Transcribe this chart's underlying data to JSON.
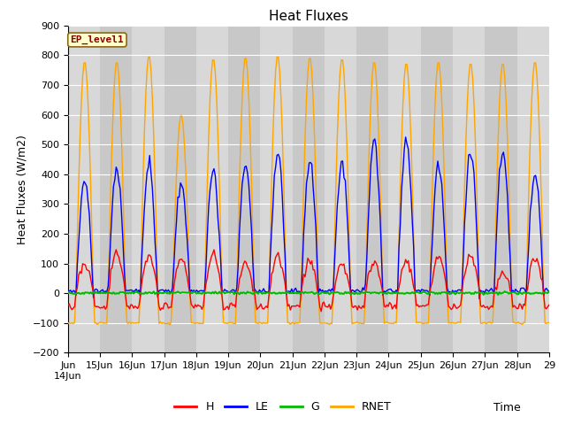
{
  "title": "Heat Fluxes",
  "ylabel": "Heat Fluxes (W/m2)",
  "xlabel": "Time",
  "ylim": [
    -200,
    900
  ],
  "yticks": [
    -200,
    -100,
    0,
    100,
    200,
    300,
    400,
    500,
    600,
    700,
    800,
    900
  ],
  "colors": {
    "H": "#ff0000",
    "LE": "#0000ff",
    "G": "#00bb00",
    "RNET": "#ffa500"
  },
  "legend_label": "EP_level1",
  "bg_color": "#d8d8d8",
  "alt_bg_color": "#c8c8c8",
  "grid_color": "#ffffff",
  "title_fontsize": 11,
  "label_fontsize": 9,
  "tick_fontsize": 8,
  "n_days": 15,
  "rnet_peaks": [
    780,
    780,
    800,
    600,
    790,
    795,
    800,
    795,
    790,
    780,
    775,
    780,
    775,
    775,
    780
  ],
  "le_peaks": [
    380,
    420,
    420,
    370,
    410,
    440,
    475,
    440,
    435,
    515,
    510,
    425,
    470,
    475,
    395
  ],
  "h_peaks": [
    100,
    130,
    125,
    120,
    130,
    105,
    130,
    105,
    100,
    105,
    100,
    125,
    125,
    60,
    120
  ]
}
